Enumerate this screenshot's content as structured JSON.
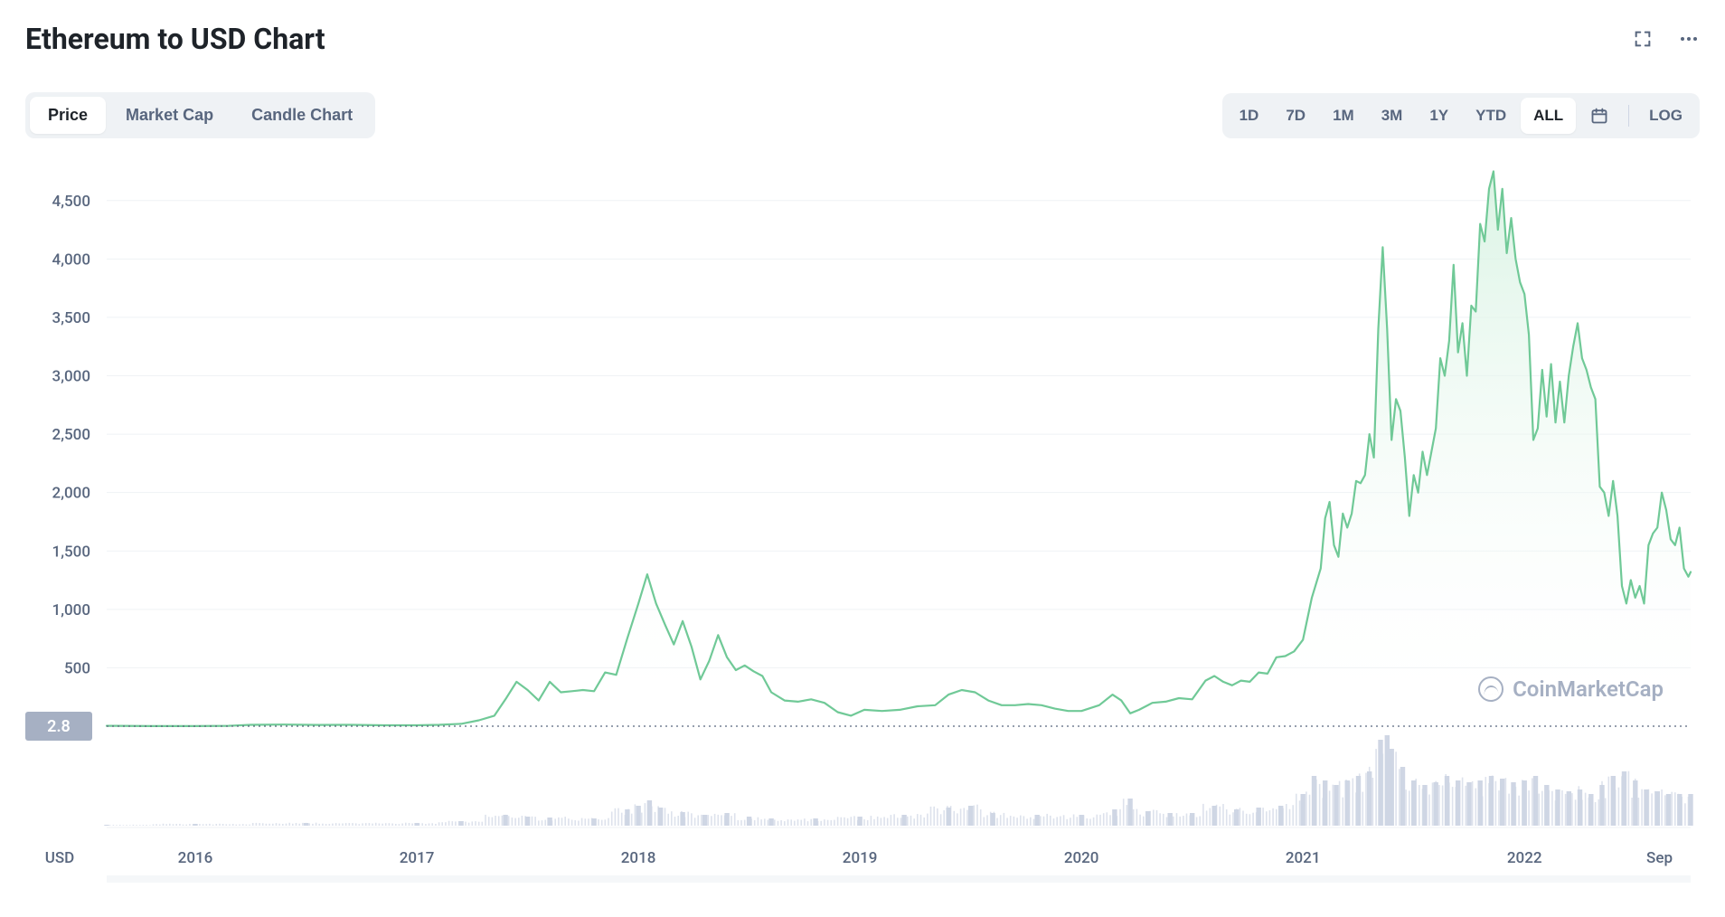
{
  "header": {
    "title": "Ethereum to USD Chart"
  },
  "view_tabs": {
    "items": [
      "Price",
      "Market Cap",
      "Candle Chart"
    ],
    "active_index": 0
  },
  "range_tabs": {
    "items": [
      "1D",
      "7D",
      "1M",
      "3M",
      "1Y",
      "YTD",
      "ALL"
    ],
    "active_index": 6,
    "log_label": "LOG"
  },
  "watermark": "CoinMarketCap",
  "chart": {
    "type": "area-line",
    "line_color": "#70c997",
    "fill_top": "#d6f2e1",
    "fill_bottom": "#ffffff",
    "grid_color": "#eff2f5",
    "dotted_color": "#58667e",
    "axis_text_color": "#58667e",
    "volume_color": "#cfd6e4",
    "baseline_badge_bg": "#a6b0c3",
    "baseline_badge_text": "#ffffff",
    "baseline_value": "2.8",
    "background_color": "#ffffff",
    "title_fontsize": 32,
    "label_fontsize": 17,
    "line_width": 2.2,
    "y_axis": {
      "label": "USD",
      "min": 0,
      "max": 4800,
      "ticks": [
        500,
        1000,
        1500,
        2000,
        2500,
        3000,
        3500,
        4000,
        4500
      ],
      "tick_labels": [
        "500",
        "1,000",
        "1,500",
        "2,000",
        "2,500",
        "3,000",
        "3,500",
        "4,000",
        "4,500"
      ]
    },
    "x_axis": {
      "ticks": [
        2016,
        2017,
        2018,
        2019,
        2020,
        2021,
        2022
      ],
      "tick_labels": [
        "2016",
        "2017",
        "2018",
        "2019",
        "2020",
        "2021",
        "2022"
      ],
      "end_label": "Sep",
      "min": 2015.6,
      "max": 2022.75
    },
    "series": [
      [
        2015.6,
        2.8
      ],
      [
        2015.8,
        1.0
      ],
      [
        2016.0,
        1.1
      ],
      [
        2016.15,
        3.0
      ],
      [
        2016.25,
        12
      ],
      [
        2016.4,
        14
      ],
      [
        2016.55,
        11
      ],
      [
        2016.7,
        12
      ],
      [
        2016.85,
        8
      ],
      [
        2017.0,
        8
      ],
      [
        2017.1,
        12
      ],
      [
        2017.2,
        20
      ],
      [
        2017.28,
        50
      ],
      [
        2017.35,
        90
      ],
      [
        2017.4,
        230
      ],
      [
        2017.45,
        380
      ],
      [
        2017.5,
        310
      ],
      [
        2017.55,
        220
      ],
      [
        2017.6,
        380
      ],
      [
        2017.65,
        290
      ],
      [
        2017.7,
        300
      ],
      [
        2017.75,
        310
      ],
      [
        2017.8,
        300
      ],
      [
        2017.85,
        460
      ],
      [
        2017.9,
        440
      ],
      [
        2017.95,
        750
      ],
      [
        2018.0,
        1050
      ],
      [
        2018.04,
        1300
      ],
      [
        2018.08,
        1050
      ],
      [
        2018.12,
        870
      ],
      [
        2018.16,
        700
      ],
      [
        2018.2,
        900
      ],
      [
        2018.24,
        680
      ],
      [
        2018.28,
        400
      ],
      [
        2018.32,
        560
      ],
      [
        2018.36,
        780
      ],
      [
        2018.4,
        590
      ],
      [
        2018.44,
        480
      ],
      [
        2018.48,
        520
      ],
      [
        2018.52,
        470
      ],
      [
        2018.56,
        430
      ],
      [
        2018.6,
        290
      ],
      [
        2018.66,
        220
      ],
      [
        2018.72,
        210
      ],
      [
        2018.78,
        230
      ],
      [
        2018.84,
        200
      ],
      [
        2018.9,
        120
      ],
      [
        2018.96,
        90
      ],
      [
        2019.02,
        140
      ],
      [
        2019.1,
        130
      ],
      [
        2019.18,
        140
      ],
      [
        2019.26,
        170
      ],
      [
        2019.34,
        180
      ],
      [
        2019.4,
        270
      ],
      [
        2019.46,
        310
      ],
      [
        2019.52,
        290
      ],
      [
        2019.58,
        220
      ],
      [
        2019.64,
        180
      ],
      [
        2019.7,
        180
      ],
      [
        2019.76,
        190
      ],
      [
        2019.82,
        180
      ],
      [
        2019.88,
        150
      ],
      [
        2019.94,
        130
      ],
      [
        2020.0,
        130
      ],
      [
        2020.08,
        180
      ],
      [
        2020.14,
        270
      ],
      [
        2020.18,
        220
      ],
      [
        2020.22,
        110
      ],
      [
        2020.26,
        140
      ],
      [
        2020.32,
        200
      ],
      [
        2020.38,
        210
      ],
      [
        2020.44,
        240
      ],
      [
        2020.5,
        230
      ],
      [
        2020.56,
        390
      ],
      [
        2020.6,
        430
      ],
      [
        2020.64,
        380
      ],
      [
        2020.68,
        350
      ],
      [
        2020.72,
        390
      ],
      [
        2020.76,
        380
      ],
      [
        2020.8,
        460
      ],
      [
        2020.84,
        450
      ],
      [
        2020.88,
        590
      ],
      [
        2020.92,
        600
      ],
      [
        2020.96,
        640
      ],
      [
        2021.0,
        740
      ],
      [
        2021.04,
        1100
      ],
      [
        2021.08,
        1350
      ],
      [
        2021.1,
        1780
      ],
      [
        2021.12,
        1920
      ],
      [
        2021.14,
        1550
      ],
      [
        2021.16,
        1450
      ],
      [
        2021.18,
        1820
      ],
      [
        2021.2,
        1700
      ],
      [
        2021.22,
        1820
      ],
      [
        2021.24,
        2100
      ],
      [
        2021.26,
        2080
      ],
      [
        2021.28,
        2150
      ],
      [
        2021.3,
        2500
      ],
      [
        2021.32,
        2300
      ],
      [
        2021.34,
        3400
      ],
      [
        2021.36,
        4100
      ],
      [
        2021.38,
        3400
      ],
      [
        2021.4,
        2450
      ],
      [
        2021.42,
        2800
      ],
      [
        2021.44,
        2700
      ],
      [
        2021.46,
        2300
      ],
      [
        2021.48,
        1800
      ],
      [
        2021.5,
        2150
      ],
      [
        2021.52,
        2000
      ],
      [
        2021.54,
        2350
      ],
      [
        2021.56,
        2150
      ],
      [
        2021.58,
        2350
      ],
      [
        2021.6,
        2550
      ],
      [
        2021.62,
        3150
      ],
      [
        2021.64,
        3000
      ],
      [
        2021.66,
        3300
      ],
      [
        2021.68,
        3950
      ],
      [
        2021.7,
        3200
      ],
      [
        2021.72,
        3450
      ],
      [
        2021.74,
        3000
      ],
      [
        2021.76,
        3600
      ],
      [
        2021.78,
        3550
      ],
      [
        2021.8,
        4300
      ],
      [
        2021.82,
        4150
      ],
      [
        2021.84,
        4600
      ],
      [
        2021.86,
        4750
      ],
      [
        2021.88,
        4250
      ],
      [
        2021.9,
        4600
      ],
      [
        2021.92,
        4050
      ],
      [
        2021.94,
        4350
      ],
      [
        2021.96,
        4000
      ],
      [
        2021.98,
        3800
      ],
      [
        2022.0,
        3700
      ],
      [
        2022.02,
        3350
      ],
      [
        2022.04,
        2450
      ],
      [
        2022.06,
        2550
      ],
      [
        2022.08,
        3050
      ],
      [
        2022.1,
        2650
      ],
      [
        2022.12,
        3100
      ],
      [
        2022.14,
        2600
      ],
      [
        2022.16,
        2950
      ],
      [
        2022.18,
        2600
      ],
      [
        2022.2,
        3000
      ],
      [
        2022.22,
        3250
      ],
      [
        2022.24,
        3450
      ],
      [
        2022.26,
        3150
      ],
      [
        2022.28,
        3050
      ],
      [
        2022.3,
        2900
      ],
      [
        2022.32,
        2800
      ],
      [
        2022.34,
        2050
      ],
      [
        2022.36,
        2000
      ],
      [
        2022.38,
        1800
      ],
      [
        2022.4,
        2100
      ],
      [
        2022.42,
        1800
      ],
      [
        2022.44,
        1200
      ],
      [
        2022.46,
        1050
      ],
      [
        2022.48,
        1250
      ],
      [
        2022.5,
        1100
      ],
      [
        2022.52,
        1200
      ],
      [
        2022.54,
        1050
      ],
      [
        2022.56,
        1550
      ],
      [
        2022.58,
        1650
      ],
      [
        2022.6,
        1700
      ],
      [
        2022.62,
        2000
      ],
      [
        2022.64,
        1850
      ],
      [
        2022.66,
        1600
      ],
      [
        2022.68,
        1550
      ],
      [
        2022.7,
        1700
      ],
      [
        2022.72,
        1350
      ],
      [
        2022.74,
        1280
      ],
      [
        2022.75,
        1320
      ]
    ],
    "volume": [
      [
        2015.6,
        0.01
      ],
      [
        2016.0,
        0.02
      ],
      [
        2016.5,
        0.03
      ],
      [
        2017.0,
        0.03
      ],
      [
        2017.2,
        0.05
      ],
      [
        2017.4,
        0.12
      ],
      [
        2017.5,
        0.1
      ],
      [
        2017.6,
        0.09
      ],
      [
        2017.8,
        0.08
      ],
      [
        2017.95,
        0.18
      ],
      [
        2018.0,
        0.22
      ],
      [
        2018.05,
        0.28
      ],
      [
        2018.1,
        0.2
      ],
      [
        2018.2,
        0.15
      ],
      [
        2018.3,
        0.12
      ],
      [
        2018.4,
        0.14
      ],
      [
        2018.5,
        0.1
      ],
      [
        2018.6,
        0.08
      ],
      [
        2018.8,
        0.08
      ],
      [
        2019.0,
        0.1
      ],
      [
        2019.2,
        0.12
      ],
      [
        2019.4,
        0.2
      ],
      [
        2019.5,
        0.22
      ],
      [
        2019.6,
        0.14
      ],
      [
        2019.8,
        0.12
      ],
      [
        2020.0,
        0.12
      ],
      [
        2020.15,
        0.18
      ],
      [
        2020.22,
        0.3
      ],
      [
        2020.3,
        0.16
      ],
      [
        2020.4,
        0.14
      ],
      [
        2020.5,
        0.14
      ],
      [
        2020.6,
        0.22
      ],
      [
        2020.7,
        0.18
      ],
      [
        2020.8,
        0.2
      ],
      [
        2020.9,
        0.22
      ],
      [
        2021.0,
        0.35
      ],
      [
        2021.05,
        0.55
      ],
      [
        2021.1,
        0.5
      ],
      [
        2021.15,
        0.45
      ],
      [
        2021.2,
        0.5
      ],
      [
        2021.25,
        0.55
      ],
      [
        2021.3,
        0.6
      ],
      [
        2021.35,
        0.95
      ],
      [
        2021.38,
        1.0
      ],
      [
        2021.4,
        0.85
      ],
      [
        2021.45,
        0.65
      ],
      [
        2021.5,
        0.5
      ],
      [
        2021.55,
        0.45
      ],
      [
        2021.6,
        0.48
      ],
      [
        2021.65,
        0.55
      ],
      [
        2021.7,
        0.5
      ],
      [
        2021.75,
        0.48
      ],
      [
        2021.8,
        0.5
      ],
      [
        2021.85,
        0.55
      ],
      [
        2021.9,
        0.52
      ],
      [
        2021.95,
        0.48
      ],
      [
        2022.0,
        0.5
      ],
      [
        2022.05,
        0.55
      ],
      [
        2022.1,
        0.45
      ],
      [
        2022.15,
        0.4
      ],
      [
        2022.2,
        0.38
      ],
      [
        2022.25,
        0.4
      ],
      [
        2022.3,
        0.35
      ],
      [
        2022.35,
        0.45
      ],
      [
        2022.4,
        0.55
      ],
      [
        2022.45,
        0.6
      ],
      [
        2022.5,
        0.5
      ],
      [
        2022.55,
        0.4
      ],
      [
        2022.6,
        0.38
      ],
      [
        2022.65,
        0.35
      ],
      [
        2022.7,
        0.35
      ],
      [
        2022.75,
        0.35
      ]
    ]
  }
}
